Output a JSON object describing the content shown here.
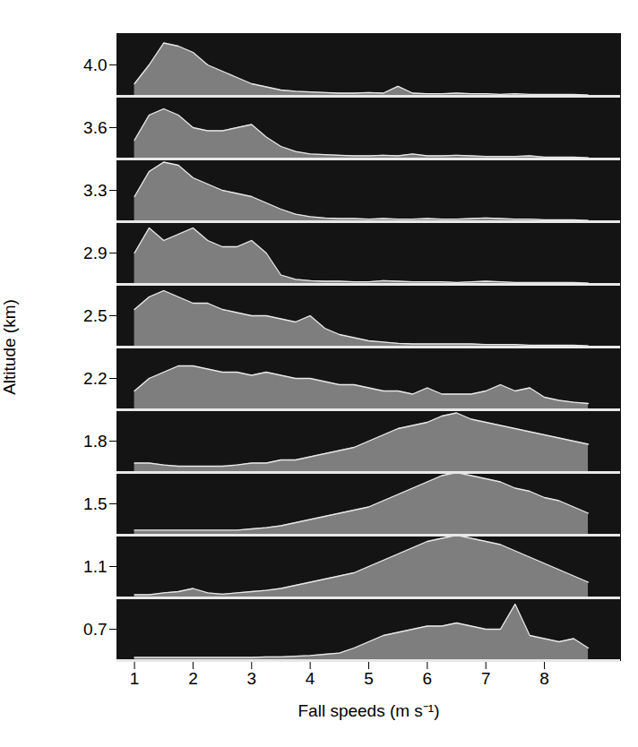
{
  "chart_data": {
    "type": "ridgeline",
    "x_label": "Fall speeds (m s⁻¹)",
    "y_label": "Altitude (km)",
    "color": "#e8e8e8",
    "xlim": [
      0.7,
      9.3
    ],
    "xticks": [
      1,
      2,
      3,
      4,
      5,
      6,
      7,
      8
    ],
    "ylim": [
      0,
      10
    ],
    "tick_labels": "x",
    "x": [
      1,
      1.25,
      1.5,
      1.75,
      2,
      2.25,
      2.5,
      2.75,
      3,
      3.25,
      3.5,
      3.75,
      4,
      4.25,
      4.5,
      4.75,
      5,
      5.25,
      5.5,
      5.75,
      6,
      6.25,
      6.5,
      6.75,
      7,
      7.25,
      7.5,
      7.75,
      8,
      8.25,
      8.5,
      8.75
    ],
    "series": [
      {
        "name": "4.0",
        "values": [
          2,
          5,
          8.5,
          8,
          7,
          5,
          4,
          3,
          2,
          1.5,
          1,
          0.8,
          0.7,
          0.6,
          0.5,
          0.5,
          0.6,
          0.5,
          1.6,
          0.5,
          0.4,
          0.4,
          0.5,
          0.4,
          0.4,
          0.3,
          0.4,
          0.3,
          0.3,
          0.3,
          0.3,
          0.2
        ]
      },
      {
        "name": "3.6",
        "values": [
          3,
          7,
          8,
          7,
          5,
          4.5,
          4.5,
          5,
          5.5,
          3.5,
          2,
          1.2,
          0.8,
          0.7,
          0.6,
          0.5,
          0.5,
          0.6,
          0.5,
          0.8,
          0.5,
          0.5,
          0.6,
          0.5,
          0.4,
          0.4,
          0.4,
          0.5,
          0.3,
          0.3,
          0.3,
          0.2
        ]
      },
      {
        "name": "3.3",
        "values": [
          4,
          8,
          9.5,
          9,
          7,
          6,
          5,
          4.5,
          4,
          3,
          2,
          1.2,
          0.8,
          0.6,
          0.5,
          0.5,
          0.4,
          0.5,
          0.4,
          0.4,
          0.5,
          0.4,
          0.4,
          0.5,
          0.6,
          0.5,
          0.4,
          0.4,
          0.3,
          0.3,
          0.3,
          0.2
        ]
      },
      {
        "name": "2.9",
        "values": [
          5,
          9,
          7,
          8,
          9,
          7,
          6,
          6,
          7,
          5,
          1.5,
          0.8,
          0.6,
          0.5,
          0.5,
          0.4,
          0.4,
          0.6,
          0.5,
          0.4,
          0.4,
          0.4,
          0.3,
          0.4,
          0.5,
          0.4,
          0.3,
          0.3,
          0.3,
          0.3,
          0.3,
          0.2
        ]
      },
      {
        "name": "2.5",
        "values": [
          6,
          8,
          9,
          8,
          7,
          7,
          6,
          5.5,
          5,
          5,
          4.5,
          4,
          5,
          3,
          2,
          1.5,
          1,
          0.8,
          0.6,
          0.5,
          0.5,
          0.5,
          0.5,
          0.5,
          0.4,
          0.4,
          0.4,
          0.3,
          0.3,
          0.3,
          0.3,
          0.2
        ]
      },
      {
        "name": "2.2",
        "values": [
          3,
          5,
          6,
          7,
          7,
          6.5,
          6,
          6,
          5.5,
          6,
          5.5,
          5,
          5,
          4.5,
          4,
          4,
          3.5,
          3,
          3,
          2.5,
          3.5,
          2.5,
          2.5,
          2.5,
          3,
          4,
          3,
          3.5,
          2,
          1.5,
          1.2,
          1
        ]
      },
      {
        "name": "1.8",
        "values": [
          1.5,
          1.5,
          1.2,
          1,
          1,
          1,
          1,
          1.2,
          1.5,
          1.5,
          2,
          2,
          2.5,
          3,
          3.5,
          4,
          5,
          6,
          7,
          7.5,
          8,
          9,
          9.5,
          8.5,
          8,
          7.5,
          7,
          6.5,
          6,
          5.5,
          5,
          4.5
        ]
      },
      {
        "name": "1.5",
        "values": [
          0.8,
          0.8,
          0.8,
          0.8,
          0.8,
          0.8,
          0.8,
          0.8,
          1,
          1.2,
          1.5,
          2,
          2.5,
          3,
          3.5,
          4,
          4.5,
          5.5,
          6.5,
          7.5,
          8.5,
          9.5,
          10,
          9.5,
          9,
          8.5,
          7.5,
          7,
          6,
          5.5,
          4.5,
          3.5
        ]
      },
      {
        "name": "1.1",
        "values": [
          0.5,
          0.5,
          0.8,
          1,
          1.5,
          0.8,
          0.6,
          0.8,
          1,
          1.2,
          1.5,
          2,
          2.5,
          3,
          3.5,
          4,
          5,
          6,
          7,
          8,
          9,
          9.5,
          10,
          9.5,
          9,
          8.5,
          7.5,
          6.5,
          5.5,
          4.5,
          3.5,
          2.5
        ]
      },
      {
        "name": "0.7",
        "values": [
          0.5,
          0.5,
          0.5,
          0.5,
          0.5,
          0.5,
          0.5,
          0.5,
          0.5,
          0.6,
          0.6,
          0.7,
          0.8,
          1,
          1.2,
          2,
          3,
          4,
          4.5,
          5,
          5.5,
          5.5,
          6,
          5.5,
          5,
          5,
          9,
          4,
          3.5,
          3,
          3.5,
          2
        ]
      }
    ]
  }
}
